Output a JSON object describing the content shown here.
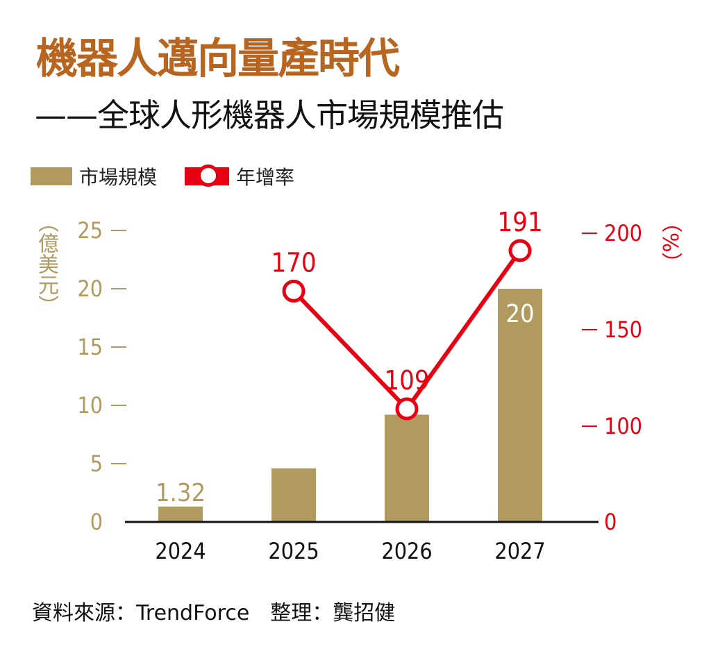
{
  "header": {
    "title": "機器人邁向量產時代",
    "subtitle": "——全球人形機器人市場規模推估"
  },
  "footer": {
    "source": "資料來源：TrendForce　整理：龔招健"
  },
  "colors": {
    "bar": "#b09a5e",
    "line": "#e60012",
    "title": "#b8651f"
  },
  "chart_data": {
    "type": "bar+line",
    "categories": [
      "2024",
      "2025",
      "2026",
      "2027"
    ],
    "series": [
      {
        "name": "市場規模",
        "type": "bar",
        "axis": "left",
        "values": [
          1.32,
          4.6,
          9.2,
          20
        ],
        "labels": [
          "1.32",
          null,
          null,
          "20"
        ]
      },
      {
        "name": "年增率",
        "type": "line",
        "axis": "right",
        "values": [
          null,
          170,
          109,
          191
        ],
        "labels": [
          null,
          "170",
          "109",
          "191"
        ]
      }
    ],
    "left_axis": {
      "label": "（億美元）",
      "ticks": [
        "0",
        "5",
        "10",
        "15",
        "20",
        "25"
      ],
      "range": [
        0,
        25
      ]
    },
    "right_axis": {
      "label": "（%）",
      "ticks": [
        "0",
        "100",
        "150",
        "200"
      ],
      "range": [
        0,
        200
      ],
      "broken_below": 100
    },
    "legend_position": "top-left",
    "grid": false
  }
}
